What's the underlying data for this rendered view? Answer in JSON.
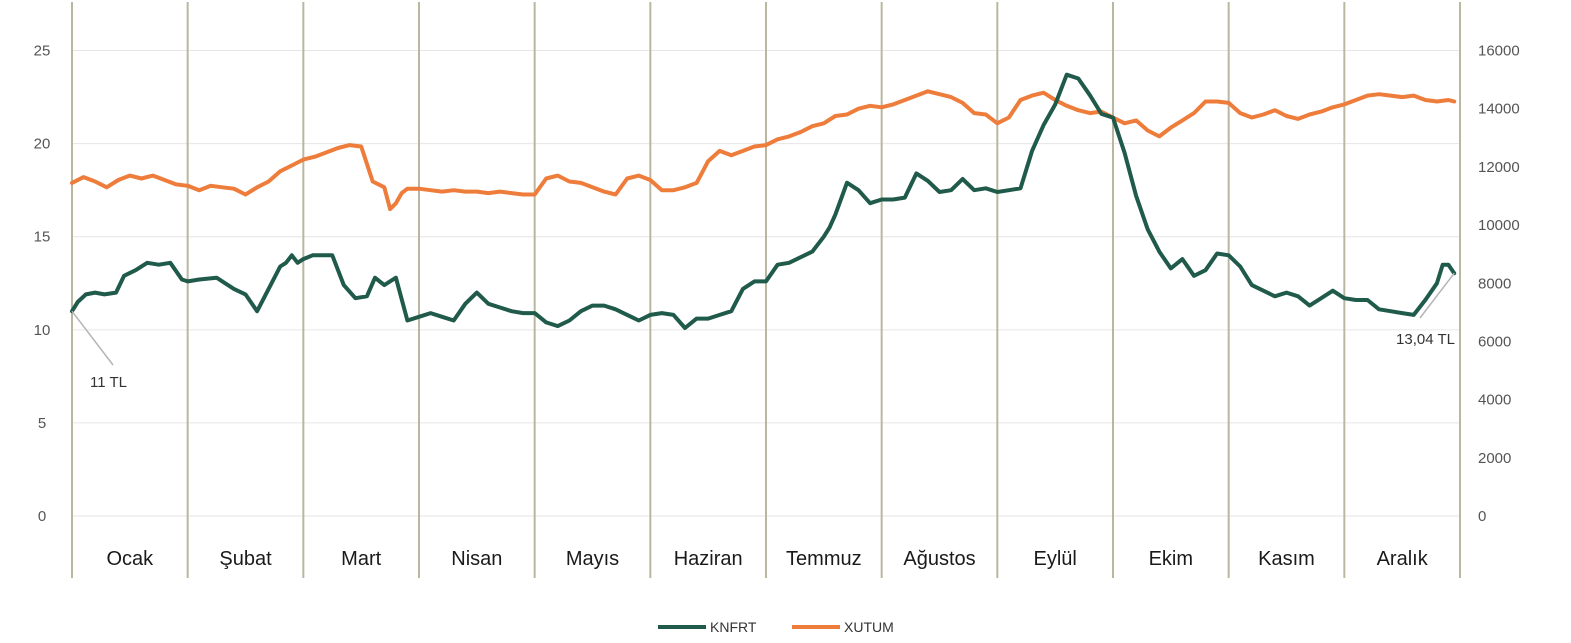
{
  "chart_data": {
    "type": "line",
    "title": "",
    "xlabel": "",
    "categories": [
      "Ocak",
      "Şubat",
      "Mart",
      "Nisan",
      "Mayıs",
      "Haziran",
      "Temmuz",
      "Ağustos",
      "Eylül",
      "Ekim",
      "Kasım",
      "Aralık"
    ],
    "y_left": {
      "ylim": [
        0,
        27.5
      ],
      "ticks": [
        "0",
        "5",
        "10",
        "15",
        "20",
        "25"
      ]
    },
    "y_right": {
      "ylim": [
        0,
        17600
      ],
      "ticks": [
        "0",
        "2000",
        "4000",
        "6000",
        "8000",
        "10000",
        "12000",
        "14000",
        "16000"
      ]
    },
    "legend_position": "bottom-center",
    "grid": true,
    "colors": {
      "KNFRT": "#1f5a4a",
      "XUTUM": "#ee7c3a",
      "month_divider": "#b9b7a0",
      "grid": "#e6e6e6"
    },
    "series": [
      {
        "name": "KNFRT",
        "axis": "left",
        "x": [
          0,
          0.05,
          0.12,
          0.2,
          0.28,
          0.38,
          0.45,
          0.55,
          0.65,
          0.75,
          0.85,
          0.95,
          1.0,
          1.1,
          1.25,
          1.4,
          1.5,
          1.6,
          1.7,
          1.8,
          1.85,
          1.9,
          1.95,
          2.0,
          2.08,
          2.15,
          2.25,
          2.35,
          2.45,
          2.55,
          2.62,
          2.7,
          2.8,
          2.9,
          3.0,
          3.1,
          3.2,
          3.3,
          3.4,
          3.5,
          3.6,
          3.7,
          3.8,
          3.9,
          4.0,
          4.1,
          4.2,
          4.3,
          4.4,
          4.5,
          4.6,
          4.7,
          4.8,
          4.9,
          5.0,
          5.1,
          5.2,
          5.3,
          5.4,
          5.5,
          5.6,
          5.7,
          5.8,
          5.9,
          6.0,
          6.1,
          6.2,
          6.3,
          6.4,
          6.5,
          6.55,
          6.6,
          6.7,
          6.8,
          6.9,
          7.0,
          7.1,
          7.2,
          7.3,
          7.4,
          7.5,
          7.6,
          7.7,
          7.8,
          7.9,
          8.0,
          8.1,
          8.2,
          8.3,
          8.4,
          8.5,
          8.6,
          8.7,
          8.8,
          8.9,
          9.0,
          9.1,
          9.2,
          9.3,
          9.4,
          9.5,
          9.6,
          9.7,
          9.8,
          9.9,
          10.0,
          10.1,
          10.2,
          10.3,
          10.4,
          10.5,
          10.6,
          10.7,
          10.8,
          10.9,
          11.0,
          11.1,
          11.2,
          11.3,
          11.4,
          11.5,
          11.6,
          11.7,
          11.8,
          11.85,
          11.9,
          11.95
        ],
        "values": [
          11.0,
          11.5,
          11.9,
          12.0,
          11.9,
          12.0,
          12.9,
          13.2,
          13.6,
          13.5,
          13.6,
          12.7,
          12.6,
          12.7,
          12.8,
          12.2,
          11.9,
          11.0,
          12.2,
          13.4,
          13.6,
          14.0,
          13.6,
          13.8,
          14.0,
          14.0,
          14.0,
          12.4,
          11.7,
          11.8,
          12.8,
          12.4,
          12.8,
          10.5,
          10.7,
          10.9,
          10.7,
          10.5,
          11.4,
          12.0,
          11.4,
          11.2,
          11.0,
          10.9,
          10.9,
          10.4,
          10.2,
          10.5,
          11.0,
          11.3,
          11.3,
          11.1,
          10.8,
          10.5,
          10.8,
          10.9,
          10.8,
          10.1,
          10.6,
          10.6,
          10.8,
          11.0,
          12.2,
          12.6,
          12.6,
          13.5,
          13.6,
          13.9,
          14.2,
          15.0,
          15.5,
          16.2,
          17.9,
          17.5,
          16.8,
          17.0,
          17.0,
          17.1,
          18.4,
          18.0,
          17.4,
          17.5,
          18.1,
          17.5,
          17.6,
          17.4,
          17.5,
          17.6,
          19.6,
          21.0,
          22.1,
          23.7,
          23.5,
          22.6,
          21.6,
          21.4,
          19.5,
          17.2,
          15.4,
          14.2,
          13.3,
          13.8,
          12.9,
          13.2,
          14.1,
          14.0,
          13.4,
          12.4,
          12.1,
          11.8,
          12.0,
          11.8,
          11.3,
          11.7,
          12.1,
          11.7,
          11.6,
          11.6,
          11.1,
          11.0,
          10.9,
          10.8,
          11.6,
          12.5,
          13.5,
          13.5,
          13.04
        ]
      },
      {
        "name": "XUTUM",
        "axis": "right",
        "x": [
          0,
          0.1,
          0.2,
          0.3,
          0.4,
          0.5,
          0.6,
          0.7,
          0.8,
          0.9,
          1.0,
          1.1,
          1.2,
          1.3,
          1.4,
          1.5,
          1.6,
          1.7,
          1.8,
          1.9,
          2.0,
          2.1,
          2.2,
          2.3,
          2.4,
          2.5,
          2.6,
          2.7,
          2.75,
          2.8,
          2.85,
          2.9,
          2.95,
          3.0,
          3.1,
          3.2,
          3.3,
          3.4,
          3.5,
          3.6,
          3.7,
          3.8,
          3.9,
          4.0,
          4.1,
          4.2,
          4.3,
          4.4,
          4.5,
          4.6,
          4.7,
          4.8,
          4.9,
          5.0,
          5.1,
          5.2,
          5.3,
          5.4,
          5.5,
          5.6,
          5.7,
          5.8,
          5.9,
          6.0,
          6.1,
          6.2,
          6.3,
          6.4,
          6.5,
          6.6,
          6.7,
          6.8,
          6.9,
          7.0,
          7.1,
          7.2,
          7.3,
          7.4,
          7.5,
          7.6,
          7.7,
          7.8,
          7.9,
          8.0,
          8.1,
          8.2,
          8.3,
          8.4,
          8.5,
          8.6,
          8.7,
          8.8,
          8.9,
          9.0,
          9.1,
          9.2,
          9.3,
          9.4,
          9.5,
          9.6,
          9.7,
          9.8,
          9.9,
          10.0,
          10.1,
          10.2,
          10.3,
          10.4,
          10.5,
          10.6,
          10.7,
          10.8,
          10.9,
          11.0,
          11.1,
          11.2,
          11.3,
          11.4,
          11.5,
          11.6,
          11.7,
          11.8,
          11.9,
          11.95
        ],
        "values": [
          11450,
          11650,
          11500,
          11300,
          11550,
          11700,
          11600,
          11700,
          11550,
          11400,
          11350,
          11200,
          11350,
          11300,
          11250,
          11050,
          11300,
          11500,
          11850,
          12050,
          12250,
          12350,
          12500,
          12650,
          12750,
          12700,
          11500,
          11300,
          10550,
          10750,
          11100,
          11250,
          11250,
          11250,
          11200,
          11150,
          11200,
          11150,
          11150,
          11100,
          11150,
          11100,
          11050,
          11050,
          11600,
          11700,
          11500,
          11450,
          11300,
          11150,
          11050,
          11600,
          11700,
          11550,
          11200,
          11200,
          11300,
          11450,
          12200,
          12550,
          12400,
          12550,
          12700,
          12750,
          12950,
          13050,
          13200,
          13400,
          13500,
          13750,
          13800,
          14000,
          14100,
          14050,
          14150,
          14300,
          14450,
          14600,
          14500,
          14400,
          14200,
          13850,
          13800,
          13500,
          13700,
          14300,
          14450,
          14550,
          14300,
          14100,
          13950,
          13850,
          13900,
          13700,
          13500,
          13600,
          13250,
          13050,
          13350,
          13600,
          13850,
          14250,
          14250,
          14200,
          13850,
          13700,
          13800,
          13950,
          13750,
          13650,
          13800,
          13900,
          14050,
          14150,
          14300,
          14450,
          14500,
          14450,
          14400,
          14450,
          14300,
          14250,
          14300,
          14250
        ]
      }
    ],
    "annotations": [
      {
        "text": "11 TL",
        "series": "KNFRT",
        "x": 0,
        "value": 11.0
      },
      {
        "text": "13,04 TL",
        "series": "KNFRT",
        "x": 11.95,
        "value": 13.04
      }
    ]
  }
}
